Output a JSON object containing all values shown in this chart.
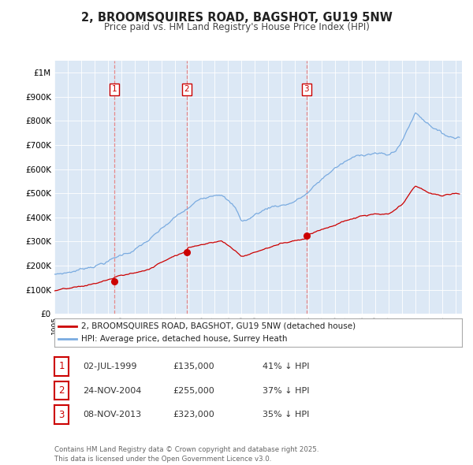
{
  "title": "2, BROOMSQUIRES ROAD, BAGSHOT, GU19 5NW",
  "subtitle": "Price paid vs. HM Land Registry's House Price Index (HPI)",
  "legend_red": "2, BROOMSQUIRES ROAD, BAGSHOT, GU19 5NW (detached house)",
  "legend_blue": "HPI: Average price, detached house, Surrey Heath",
  "transactions": [
    {
      "num": "1",
      "date": "02-JUL-1999",
      "price": "£135,000",
      "pct": "41% ↓ HPI",
      "year_x": 1999.5,
      "sale_price": 135000
    },
    {
      "num": "2",
      "date": "24-NOV-2004",
      "price": "£255,000",
      "pct": "37% ↓ HPI",
      "year_x": 2004.9,
      "sale_price": 255000
    },
    {
      "num": "3",
      "date": "08-NOV-2013",
      "price": "£323,000",
      "pct": "35% ↓ HPI",
      "year_x": 2013.85,
      "sale_price": 323000
    }
  ],
  "footer": "Contains HM Land Registry data © Crown copyright and database right 2025.\nThis data is licensed under the Open Government Licence v3.0.",
  "red_color": "#cc0000",
  "blue_color": "#7aabe0",
  "vline_color": "#e87878",
  "bg_plot": "#dce8f5",
  "grid_color": "#ffffff",
  "ylim": [
    0,
    1050000
  ],
  "xlim_start": 1995.0,
  "xlim_end": 2025.5,
  "yticks": [
    0,
    100000,
    200000,
    300000,
    400000,
    500000,
    600000,
    700000,
    800000,
    900000,
    1000000
  ]
}
